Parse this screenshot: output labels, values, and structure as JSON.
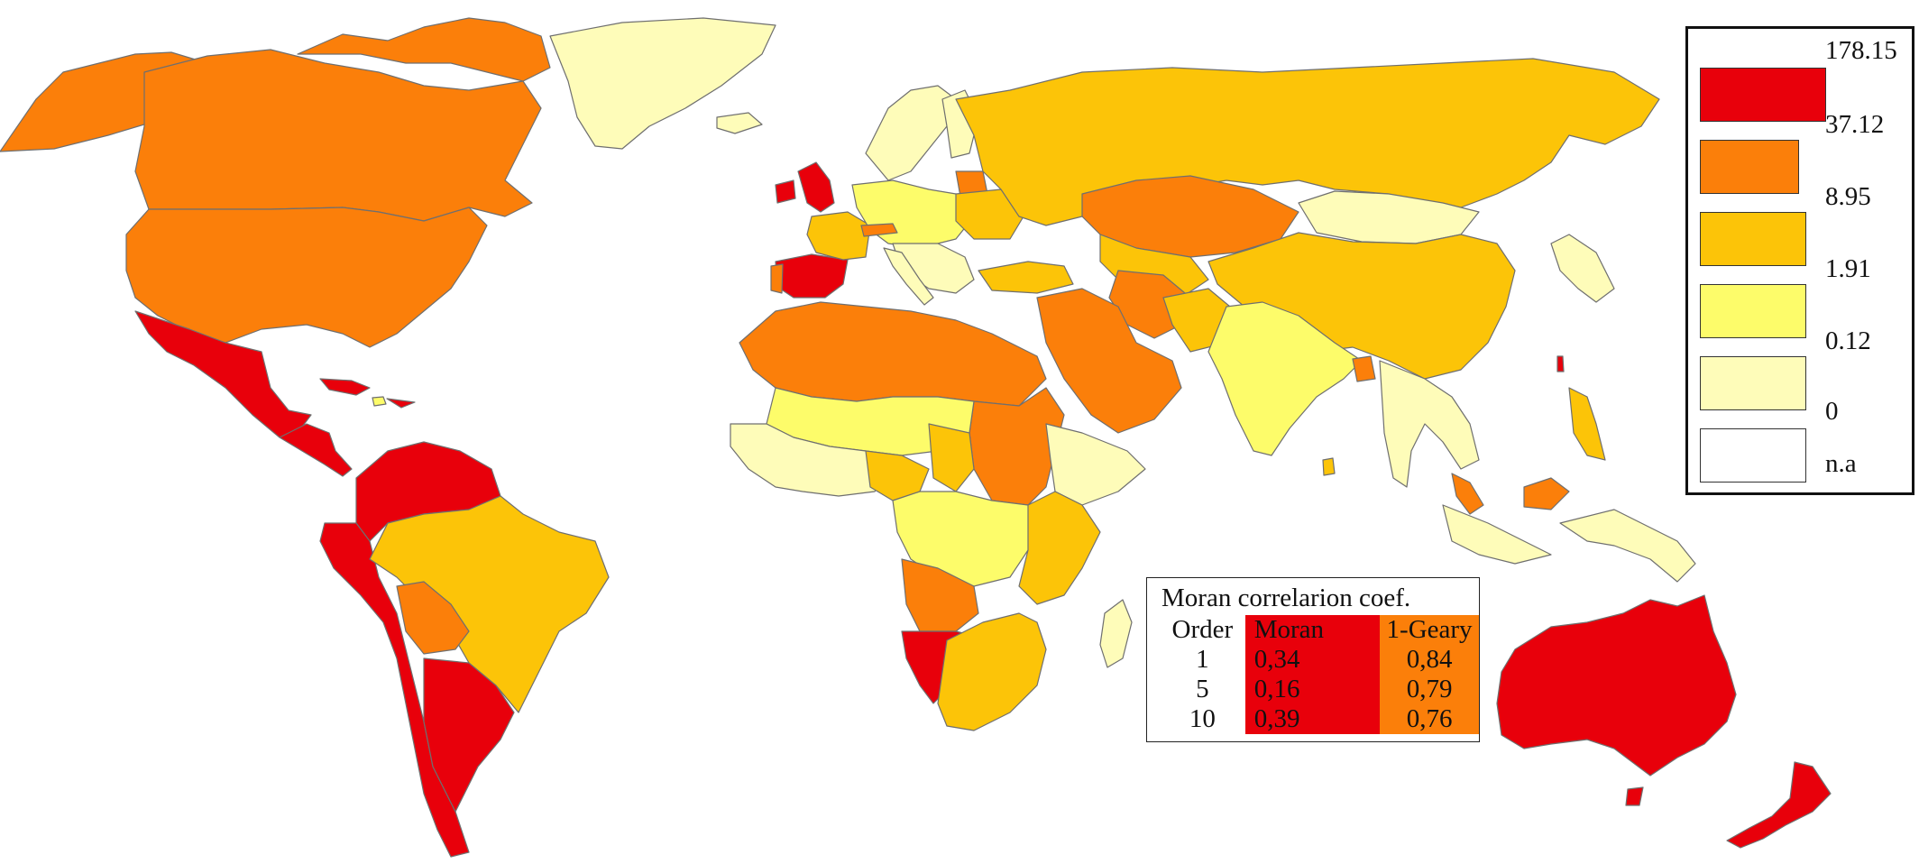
{
  "colors": {
    "c1": "#e8000b",
    "c2": "#fb7f0a",
    "c3": "#fcc408",
    "c4": "#fdfc6a",
    "c5": "#fefcb9",
    "c6": "#ffffff"
  },
  "legend": {
    "breaks": [
      "178.15",
      "37.12",
      "8.95",
      "1.91",
      "0.12",
      "0",
      "n.a"
    ]
  },
  "stats": {
    "title": "Moran correlarion coef.",
    "headers": [
      "Order",
      "Moran",
      "1-Geary"
    ],
    "rows": [
      [
        "1",
        "0,34",
        "0,84"
      ],
      [
        "5",
        "0,16",
        "0,79"
      ],
      [
        "10",
        "0,39",
        "0,76"
      ]
    ]
  }
}
